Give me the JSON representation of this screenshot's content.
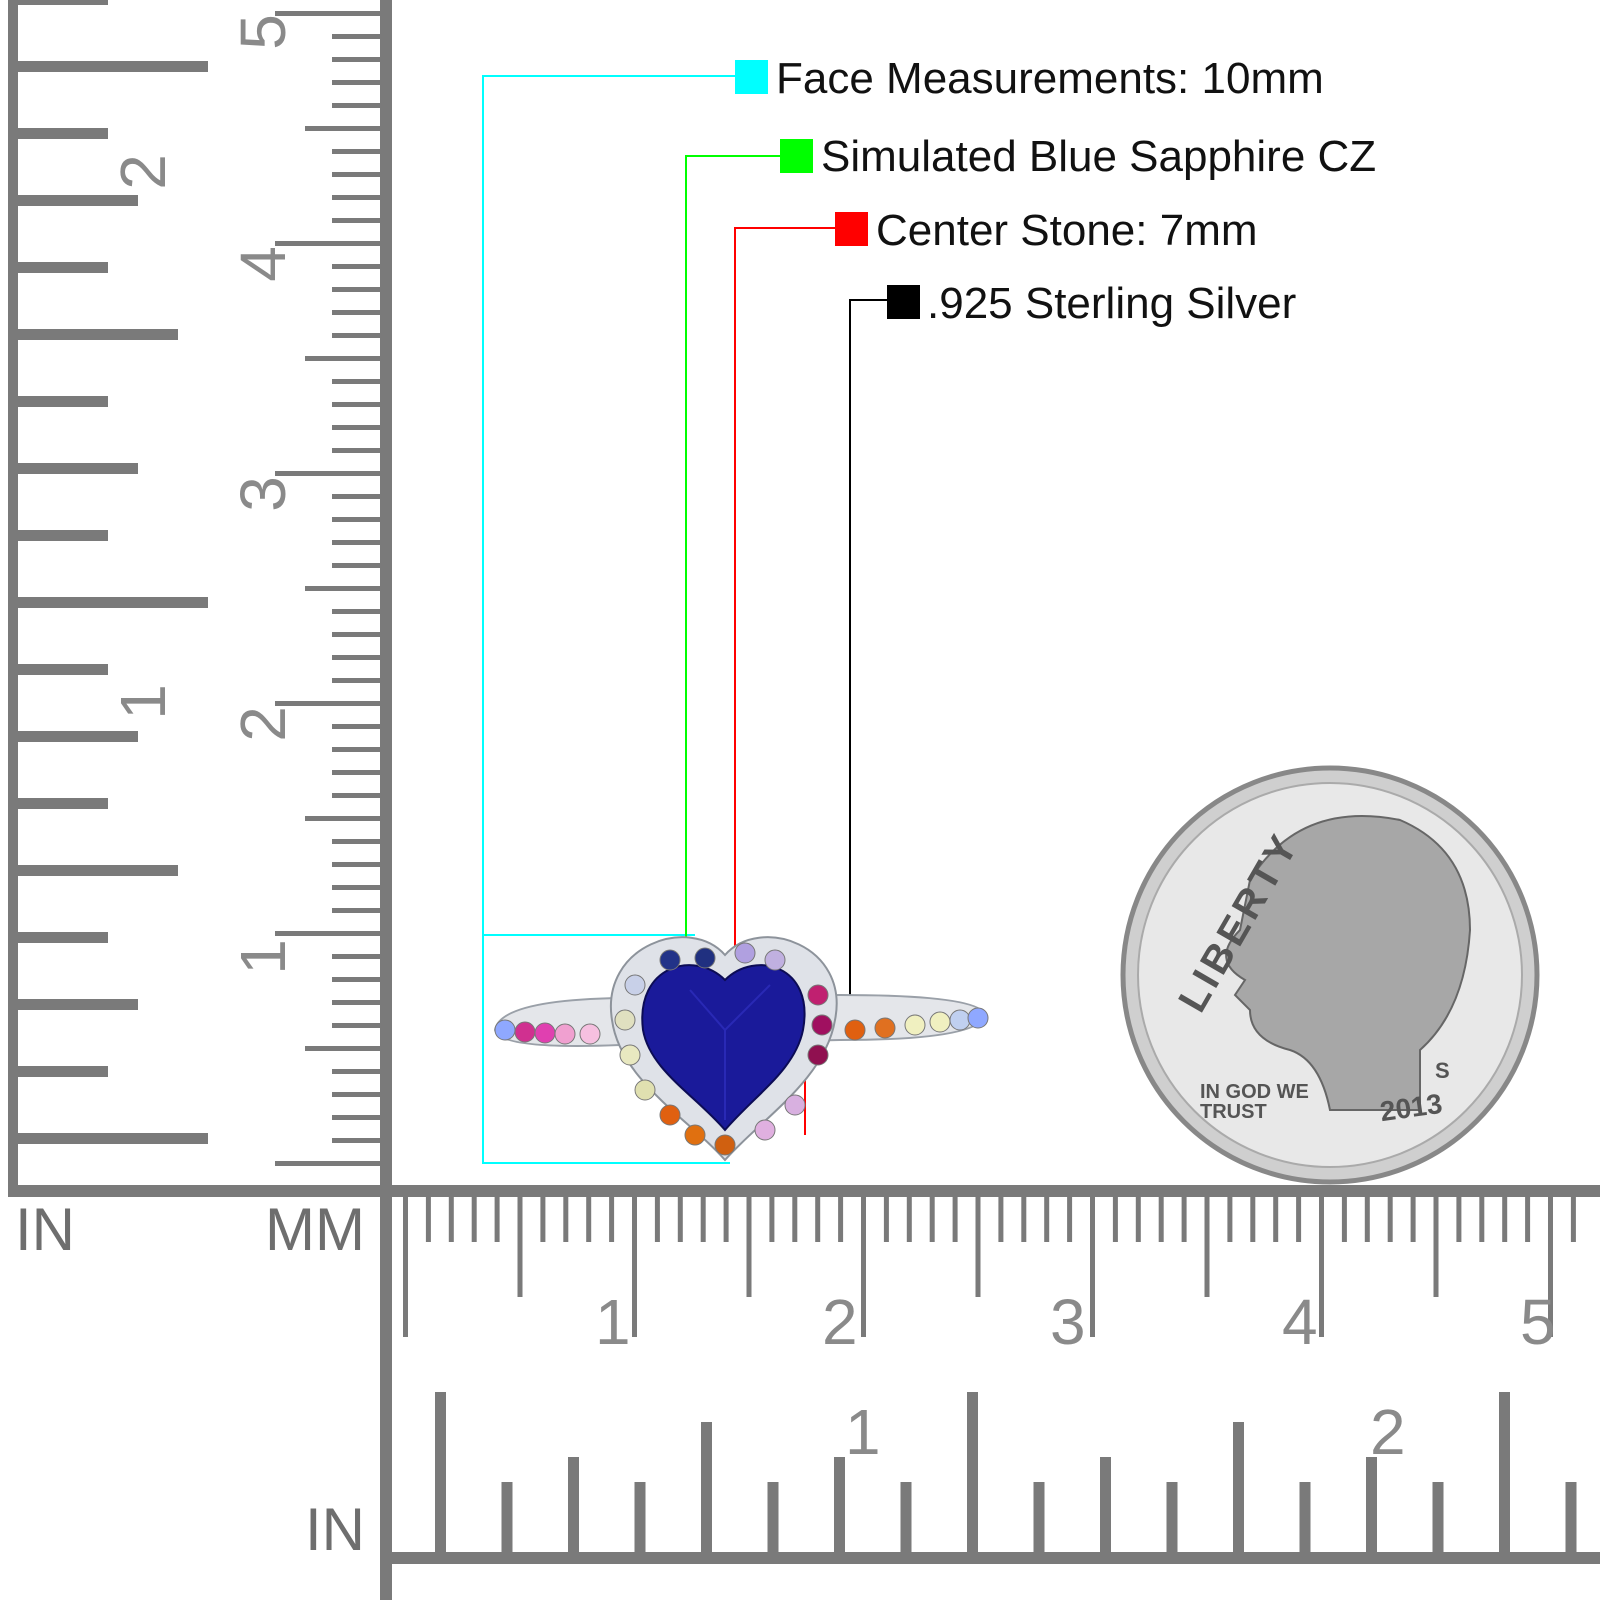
{
  "callouts": [
    {
      "label": "Face Measurements: 10mm",
      "color": "#00ffff"
    },
    {
      "label": "Simulated Blue Sapphire CZ",
      "color": "#00ff00"
    },
    {
      "label": "Center Stone: 7mm",
      "color": "#ff0000"
    },
    {
      "label": ".925 Sterling Silver",
      "color": "#000000"
    }
  ],
  "ruler": {
    "unit_in_left": "IN",
    "unit_mm": "MM",
    "unit_in_bottom": "IN",
    "vertical_mm_numbers": [
      "5",
      "4",
      "3",
      "2",
      "1"
    ],
    "vertical_in_numbers": [
      "2",
      "1"
    ],
    "horizontal_mm_numbers": [
      "1",
      "2",
      "3",
      "4",
      "5"
    ],
    "horizontal_in_numbers": [
      "1",
      "2"
    ],
    "color": "#7a7a7a"
  },
  "coin": {
    "legend_top": "LIBERTY",
    "motto": "IN GOD WE TRUST",
    "mint_mark": "S",
    "year": "2013"
  },
  "ring": {
    "center_stone_color": "#1a1a9a"
  }
}
